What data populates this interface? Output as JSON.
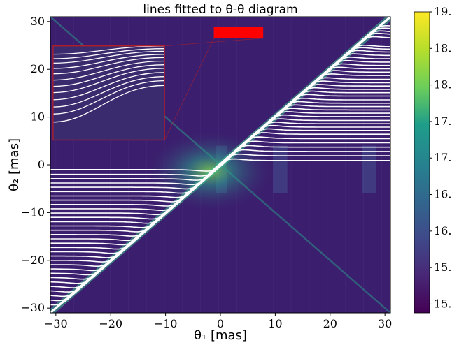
{
  "chart_data": {
    "type": "heatmap",
    "title": "lines fitted to θ-θ diagram",
    "xlabel": "θ₁ [mas]",
    "ylabel": "θ₂ [mas]",
    "xlim": [
      -31,
      31
    ],
    "ylim": [
      -31,
      31
    ],
    "xticks": [
      -30,
      -20,
      -10,
      0,
      10,
      20,
      30
    ],
    "yticks": [
      -30,
      -20,
      -10,
      0,
      10,
      20,
      30
    ],
    "colorbar": {
      "ticks": [
        15.0,
        15.5,
        16.0,
        16.5,
        17.0,
        17.5,
        18.0,
        18.5,
        19.0
      ],
      "range": [
        14.88,
        19.0
      ],
      "colormap": "viridis",
      "colors": [
        "#440154",
        "#482777",
        "#3f4a8a",
        "#31678e",
        "#26838f",
        "#1f9d8a",
        "#6cce5a",
        "#b6de2b",
        "#fee825"
      ]
    },
    "background_color": "#3b1e6e",
    "fitted_lines": {
      "color": "#ffffff",
      "horizontal_levels": [
        28.8,
        28.3,
        27.7,
        27.2,
        26.5,
        24.7,
        24.2,
        23.6,
        22.9,
        22.2,
        21.5,
        20.8,
        20.1,
        19.4,
        18.7,
        17.9,
        17.2,
        16.5,
        15.8,
        15.1,
        14.4,
        13.6,
        12.9,
        12.2,
        11.5,
        10.8,
        10.1,
        9.3,
        8.6,
        7.9,
        7.2,
        6.4,
        5.5,
        4.6,
        3.7,
        2.8,
        1.9,
        0.9,
        -1.0,
        -2.0,
        -2.9,
        -3.8,
        -4.7,
        -5.6,
        -6.5,
        -7.4,
        -8.3,
        -9.2,
        -10.1,
        -11.0,
        -11.9,
        -12.8,
        -13.7,
        -14.6,
        -15.5,
        -16.4,
        -17.3,
        -18.2,
        -19.1,
        -20.0,
        -20.9,
        -21.8,
        -22.7,
        -23.6,
        -24.5,
        -25.4,
        -26.3,
        -27.2,
        -28.1,
        -29.0
      ]
    },
    "inset": {
      "border_color": "#b01f2a",
      "x_range": [
        -30.5,
        -10.2
      ],
      "y_range": [
        5.2,
        24.9
      ]
    },
    "highlight_box": {
      "color": "#ff0000",
      "x_range": [
        -1.2,
        7.8
      ],
      "y_range": [
        26.5,
        28.9
      ]
    }
  }
}
